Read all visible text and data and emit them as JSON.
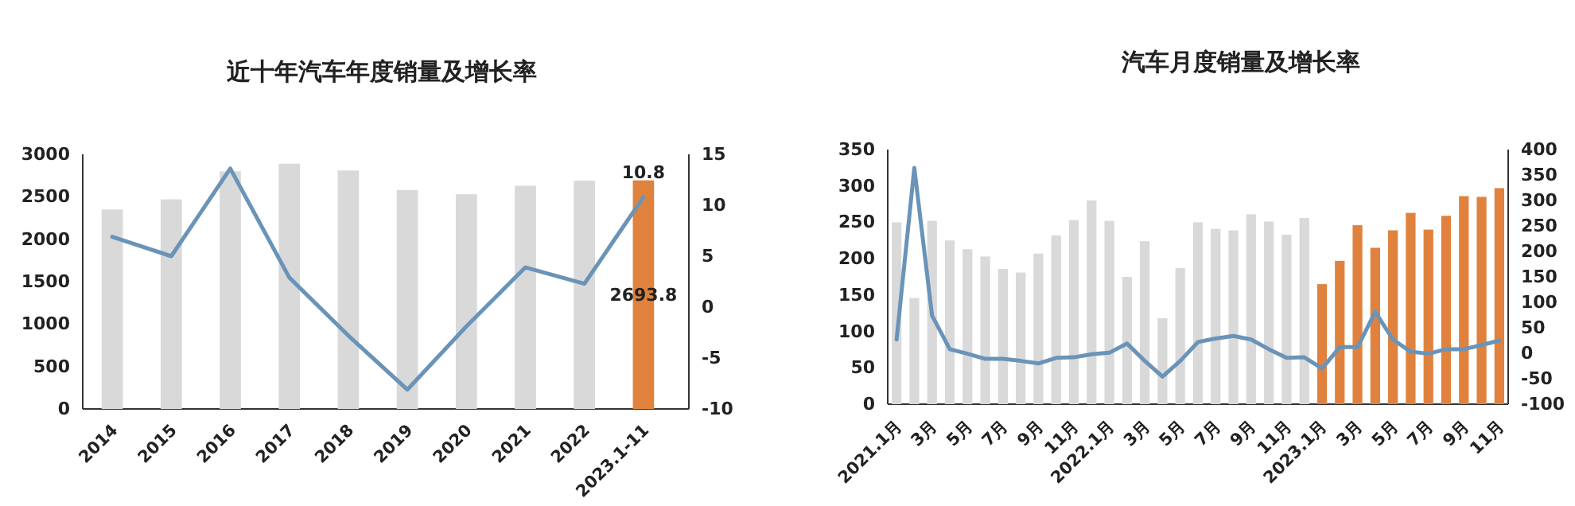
{
  "chart_data": [
    {
      "type": "bar",
      "title": "近十年汽车年度销量及增长率",
      "categories": [
        "2014",
        "2015",
        "2016",
        "2017",
        "2018",
        "2019",
        "2020",
        "2021",
        "2022",
        "2023.1-11"
      ],
      "series": [
        {
          "colors": [
            "#d9d9d9",
            "#d9d9d9",
            "#d9d9d9",
            "#d9d9d9",
            "#d9d9d9",
            "#d9d9d9",
            "#d9d9d9",
            "#d9d9d9",
            "#d9d9d9",
            "#e0823d"
          ],
          "values": [
            2350,
            2470,
            2800,
            2890,
            2810,
            2580,
            2530,
            2630,
            2690,
            2693.8
          ],
          "value_labels": [
            null,
            null,
            null,
            null,
            null,
            null,
            null,
            null,
            null,
            "2693.8"
          ]
        },
        {
          "type": "line",
          "axis": "y2",
          "color": "#6a93b8",
          "values": [
            6.9,
            5.0,
            13.6,
            2.9,
            -2.8,
            -8.1,
            -1.9,
            3.9,
            2.3,
            10.8
          ],
          "value_labels": [
            null,
            null,
            null,
            null,
            null,
            null,
            null,
            null,
            null,
            "10.8"
          ]
        }
      ],
      "ylim": [
        0,
        3000
      ],
      "yticks": [
        0,
        500,
        1000,
        1500,
        2000,
        2500,
        3000
      ],
      "y2lim": [
        -10,
        15
      ],
      "y2ticks": [
        -10,
        -5,
        0,
        5,
        10,
        15
      ]
    },
    {
      "type": "bar",
      "title": "汽车月度销量及增长率",
      "categories": [
        "2021.1月",
        null,
        "3月",
        null,
        "5月",
        null,
        "7月",
        null,
        "9月",
        null,
        "11月",
        null,
        "2022.1月",
        null,
        "3月",
        null,
        "5月",
        null,
        "7月",
        null,
        "9月",
        null,
        "11月",
        null,
        "2023.1月",
        null,
        "3月",
        null,
        "5月",
        null,
        "7月",
        null,
        "9月",
        null,
        "11月"
      ],
      "series": [
        {
          "colors": [
            "#d9d9d9",
            "#d9d9d9",
            "#d9d9d9",
            "#d9d9d9",
            "#d9d9d9",
            "#d9d9d9",
            "#d9d9d9",
            "#d9d9d9",
            "#d9d9d9",
            "#d9d9d9",
            "#d9d9d9",
            "#d9d9d9",
            "#d9d9d9",
            "#d9d9d9",
            "#d9d9d9",
            "#d9d9d9",
            "#d9d9d9",
            "#d9d9d9",
            "#d9d9d9",
            "#d9d9d9",
            "#d9d9d9",
            "#d9d9d9",
            "#d9d9d9",
            "#d9d9d9",
            "#e0823d",
            "#e0823d",
            "#e0823d",
            "#e0823d",
            "#e0823d",
            "#e0823d",
            "#e0823d",
            "#e0823d",
            "#e0823d",
            "#e0823d",
            "#e0823d"
          ],
          "values": [
            250,
            146,
            252,
            225,
            213,
            203,
            186,
            181,
            207,
            232,
            253,
            280,
            252,
            175,
            224,
            118,
            187,
            250,
            241,
            239,
            261,
            251,
            233,
            256,
            165,
            197,
            246,
            215,
            239,
            263,
            240,
            259,
            286,
            285,
            297
          ]
        },
        {
          "type": "line",
          "axis": "y2",
          "color": "#6a93b8",
          "values": [
            27,
            364,
            74,
            8,
            -1,
            -11,
            -11,
            -15,
            -20,
            -9,
            -8,
            -2,
            1,
            19,
            -15,
            -46,
            -15,
            22,
            29,
            34,
            27,
            8,
            -9,
            -8,
            -30,
            12,
            12,
            81,
            27,
            3,
            -1,
            8,
            8,
            16,
            25
          ]
        }
      ],
      "ylim": [
        0,
        350
      ],
      "yticks": [
        0,
        50,
        100,
        150,
        200,
        250,
        300,
        350
      ],
      "y2lim": [
        -100,
        400
      ],
      "y2ticks": [
        -100,
        -50,
        0,
        50,
        100,
        150,
        200,
        250,
        300,
        350,
        400
      ]
    }
  ]
}
